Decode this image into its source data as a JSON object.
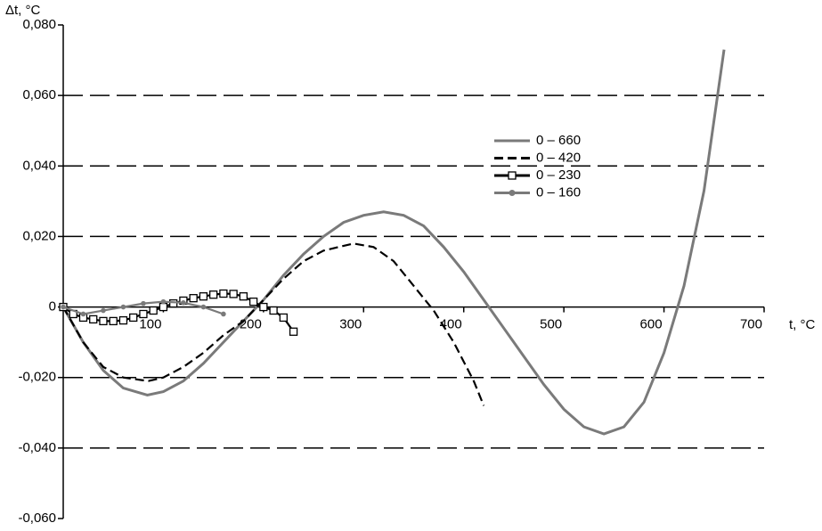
{
  "chart_data": {
    "type": "line",
    "y_label": "Δt, °C",
    "x_label": "t, °C",
    "xlim": [
      0,
      700
    ],
    "xticks": [
      100,
      200,
      300,
      400,
      500,
      600,
      700
    ],
    "ylim": [
      -0.06,
      0.08
    ],
    "yticks": [
      {
        "value": -0.06,
        "label": "-0,060"
      },
      {
        "value": -0.04,
        "label": "-0,040"
      },
      {
        "value": -0.02,
        "label": "-0,020"
      },
      0,
      {
        "value": 0.02,
        "label": "0,020"
      },
      {
        "value": 0.04,
        "label": "0,040"
      },
      {
        "value": 0.06,
        "label": "0,060"
      },
      {
        "value": 0.08,
        "label": "0,080"
      }
    ],
    "grid": true,
    "legend": "upper-right",
    "series": [
      {
        "name": "0 – 660",
        "color": "#7a7a7a",
        "style": "solid",
        "x": [
          0,
          20,
          40,
          60,
          84,
          100,
          120,
          140,
          160,
          180,
          200,
          220,
          240,
          260,
          280,
          300,
          320,
          340,
          360,
          380,
          400,
          420,
          440,
          460,
          480,
          500,
          520,
          540,
          560,
          580,
          600,
          620,
          640,
          660
        ],
        "values": [
          0,
          -0.01,
          -0.018,
          -0.023,
          -0.025,
          -0.024,
          -0.021,
          -0.016,
          -0.01,
          -0.004,
          0.002,
          0.009,
          0.015,
          0.02,
          0.024,
          0.026,
          0.027,
          0.026,
          0.023,
          0.017,
          0.01,
          0.002,
          -0.006,
          -0.014,
          -0.022,
          -0.029,
          -0.034,
          -0.036,
          -0.034,
          -0.027,
          -0.013,
          0.006,
          0.033,
          0.073
        ]
      },
      {
        "name": "0 – 420",
        "color": "#000000",
        "style": "dashed",
        "x": [
          0,
          20,
          40,
          60,
          85,
          100,
          120,
          140,
          160,
          180,
          200,
          220,
          240,
          260,
          290,
          310,
          330,
          350,
          370,
          390,
          410,
          420
        ],
        "values": [
          0,
          -0.01,
          -0.017,
          -0.02,
          -0.021,
          -0.02,
          -0.017,
          -0.013,
          -0.008,
          -0.004,
          0.002,
          0.008,
          0.013,
          0.016,
          0.018,
          0.017,
          0.013,
          0.006,
          -0.001,
          -0.01,
          -0.021,
          -0.028
        ]
      },
      {
        "name": "0 – 230",
        "color": "#000000",
        "style": "square",
        "x": [
          0,
          10,
          20,
          30,
          40,
          50,
          60,
          70,
          80,
          90,
          100,
          110,
          120,
          130,
          140,
          150,
          160,
          170,
          180,
          190,
          200,
          210,
          220,
          230
        ],
        "values": [
          0,
          -0.002,
          -0.003,
          -0.0035,
          -0.004,
          -0.004,
          -0.0038,
          -0.003,
          -0.002,
          -0.001,
          0,
          0.001,
          0.0018,
          0.0025,
          0.003,
          0.0035,
          0.0038,
          0.0037,
          0.003,
          0.0015,
          0,
          -0.001,
          -0.003,
          -0.007
        ]
      },
      {
        "name": "0 – 160",
        "color": "#7a7a7a",
        "style": "dot",
        "x": [
          0,
          20,
          40,
          60,
          80,
          100,
          120,
          140,
          160
        ],
        "values": [
          0,
          -0.002,
          -0.001,
          0,
          0.001,
          0.0015,
          0.0012,
          0,
          -0.002
        ]
      }
    ]
  }
}
